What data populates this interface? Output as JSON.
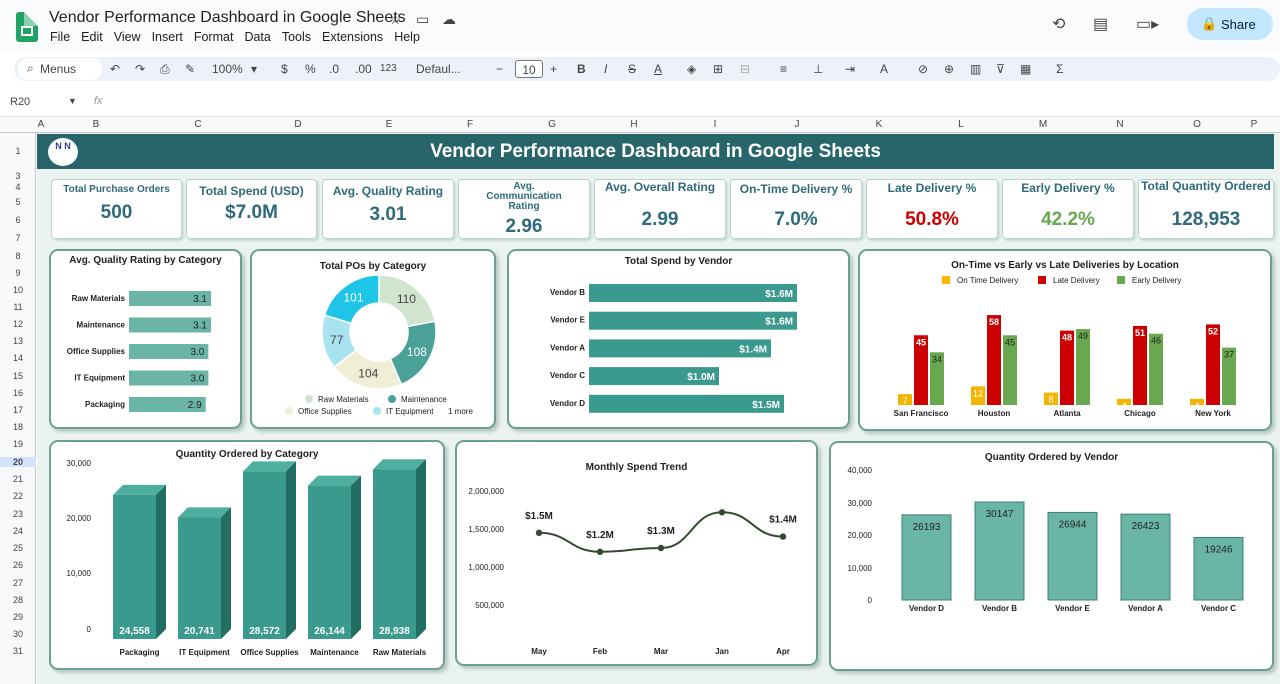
{
  "app": {
    "doc_title": "Vendor Performance Dashboard in Google Sheets",
    "menu": [
      "File",
      "Edit",
      "View",
      "Insert",
      "Format",
      "Data",
      "Tools",
      "Extensions",
      "Help"
    ],
    "share_label": "Share"
  },
  "toolbar": {
    "menus_label": "Menus",
    "zoom": "100%",
    "currency": "$",
    "percent": "%",
    "dec_minus": ".0",
    "dec_plus": ".00",
    "number_format": "123",
    "font": "Defaul...",
    "font_size": "10"
  },
  "formula_bar": {
    "cell_ref": "R20",
    "fx": "fx"
  },
  "columns": [
    "A",
    "B",
    "C",
    "D",
    "E",
    "F",
    "G",
    "H",
    "I",
    "J",
    "K",
    "L",
    "M",
    "N",
    "O",
    "P"
  ],
  "rows": [
    "1",
    "3",
    "4",
    "5",
    "6",
    "7",
    "8",
    "9",
    "10",
    "11",
    "12",
    "13",
    "14",
    "15",
    "16",
    "17",
    "18",
    "19",
    "20",
    "21",
    "22",
    "23",
    "24",
    "25",
    "26",
    "27",
    "28",
    "29",
    "30",
    "31"
  ],
  "active_row": "20",
  "dashboard": {
    "title": "Vendor Performance Dashboard in Google Sheets",
    "logo_text": "N N"
  },
  "kpis": [
    {
      "label": "Total Purchase Orders",
      "value": "500",
      "color": "#2e6a7a"
    },
    {
      "label": "Total Spend (USD)",
      "value": "$7.0M",
      "color": "#2e6a7a"
    },
    {
      "label": "Avg. Quality Rating",
      "value": "3.01",
      "color": "#2e6a7a"
    },
    {
      "label": "Avg. Communication Rating",
      "value": "2.96",
      "color": "#2e6a7a"
    },
    {
      "label": "Avg. Overall Rating",
      "value": "2.99",
      "color": "#2e6a7a"
    },
    {
      "label": "On-Time Delivery %",
      "value": "7.0%",
      "color": "#2e6a7a"
    },
    {
      "label": "Late Delivery %",
      "value": "50.8%",
      "color": "#cc0000"
    },
    {
      "label": "Early Delivery %",
      "value": "42.2%",
      "color": "#6aa84f"
    },
    {
      "label": "Total Quantity Ordered",
      "value": "128,953",
      "color": "#2e6a7a"
    }
  ],
  "chart_data": [
    {
      "type": "bar",
      "title": "Avg. Quality Rating by Category",
      "orientation": "horizontal",
      "categories": [
        "Raw Materials",
        "Maintenance",
        "Office Supplies",
        "IT Equipment",
        "Packaging"
      ],
      "values": [
        3.1,
        3.1,
        3.0,
        3.0,
        2.9
      ],
      "labels": [
        "3.1",
        "3.1",
        "3.0",
        "3.0",
        "2.9"
      ],
      "color": "#6bb5a7"
    },
    {
      "type": "pie",
      "title": "Total POs by Category",
      "donut": true,
      "categories": [
        "Raw Materials",
        "Maintenance",
        "Office Supplies",
        "IT Equipment",
        "Packaging"
      ],
      "values": [
        110,
        108,
        104,
        77,
        101
      ],
      "colors": [
        "#cfe5cf",
        "#4aa198",
        "#efefd7",
        "#a8e3ef",
        "#1fc5e6"
      ],
      "legend": [
        "Raw Materials",
        "Maintenance",
        "Office Supplies",
        "IT Equipment"
      ],
      "legend_more": "1 more"
    },
    {
      "type": "bar",
      "title": "Total Spend by Vendor",
      "orientation": "horizontal",
      "categories": [
        "Vendor B",
        "Vendor E",
        "Vendor A",
        "Vendor C",
        "Vendor D"
      ],
      "values": [
        1.6,
        1.6,
        1.4,
        1.0,
        1.5
      ],
      "labels": [
        "$1.6M",
        "$1.6M",
        "$1.4M",
        "$1.0M",
        "$1.5M"
      ],
      "color": "#3a9a8d"
    },
    {
      "type": "bar",
      "title": "On-Time vs Early vs Late Deliveries by Location",
      "categories": [
        "San Francisco",
        "Houston",
        "Atlanta",
        "Chicago",
        "New York"
      ],
      "series": [
        {
          "name": "On Time Delivery",
          "values": [
            7,
            12,
            8,
            4,
            4
          ],
          "color": "#f4b400"
        },
        {
          "name": "Late Delivery",
          "values": [
            45,
            58,
            48,
            51,
            52
          ],
          "color": "#cc0000"
        },
        {
          "name": "Early  Delivery",
          "values": [
            34,
            45,
            49,
            46,
            37
          ],
          "color": "#6aa84f"
        }
      ],
      "legend": "top"
    },
    {
      "type": "bar",
      "title": "Quantity Ordered by Category",
      "categories": [
        "Packaging",
        "IT Equipment",
        "Office Supplies",
        "Maintenance",
        "Raw Materials"
      ],
      "values": [
        24558,
        20741,
        28572,
        26144,
        28938
      ],
      "labels": [
        "24,558",
        "20,741",
        "28,572",
        "26,144",
        "28,938"
      ],
      "yticks": [
        "30,000",
        "20,000",
        "10,000",
        "0"
      ],
      "ylim": [
        0,
        30000
      ],
      "color": "#3a9a8d"
    },
    {
      "type": "line",
      "title": "Monthly Spend Trend",
      "categories": [
        "May",
        "Feb",
        "Mar",
        "Jan",
        "Apr"
      ],
      "values": [
        1450000,
        1200000,
        1250000,
        1720000,
        1400000
      ],
      "point_labels": [
        "$1.5M",
        "$1.2M",
        "$1.3M",
        "",
        "$1.4M"
      ],
      "yticks": [
        "2,000,000",
        "1,500,000",
        "1,000,000",
        "500,000"
      ],
      "ylim": [
        0,
        2000000
      ],
      "color": "#344a2e"
    },
    {
      "type": "bar",
      "title": "Quantity Ordered by Vendor",
      "categories": [
        "Vendor D",
        "Vendor B",
        "Vendor E",
        "Vendor A",
        "Vendor C"
      ],
      "values": [
        26193,
        30147,
        26944,
        26423,
        19246
      ],
      "labels": [
        "26193",
        "30147",
        "26944",
        "26423",
        "19246"
      ],
      "yticks": [
        "40,000",
        "30,000",
        "20,000",
        "10,000",
        "0"
      ],
      "ylim": [
        0,
        40000
      ],
      "color": "#6bb5a7"
    }
  ]
}
